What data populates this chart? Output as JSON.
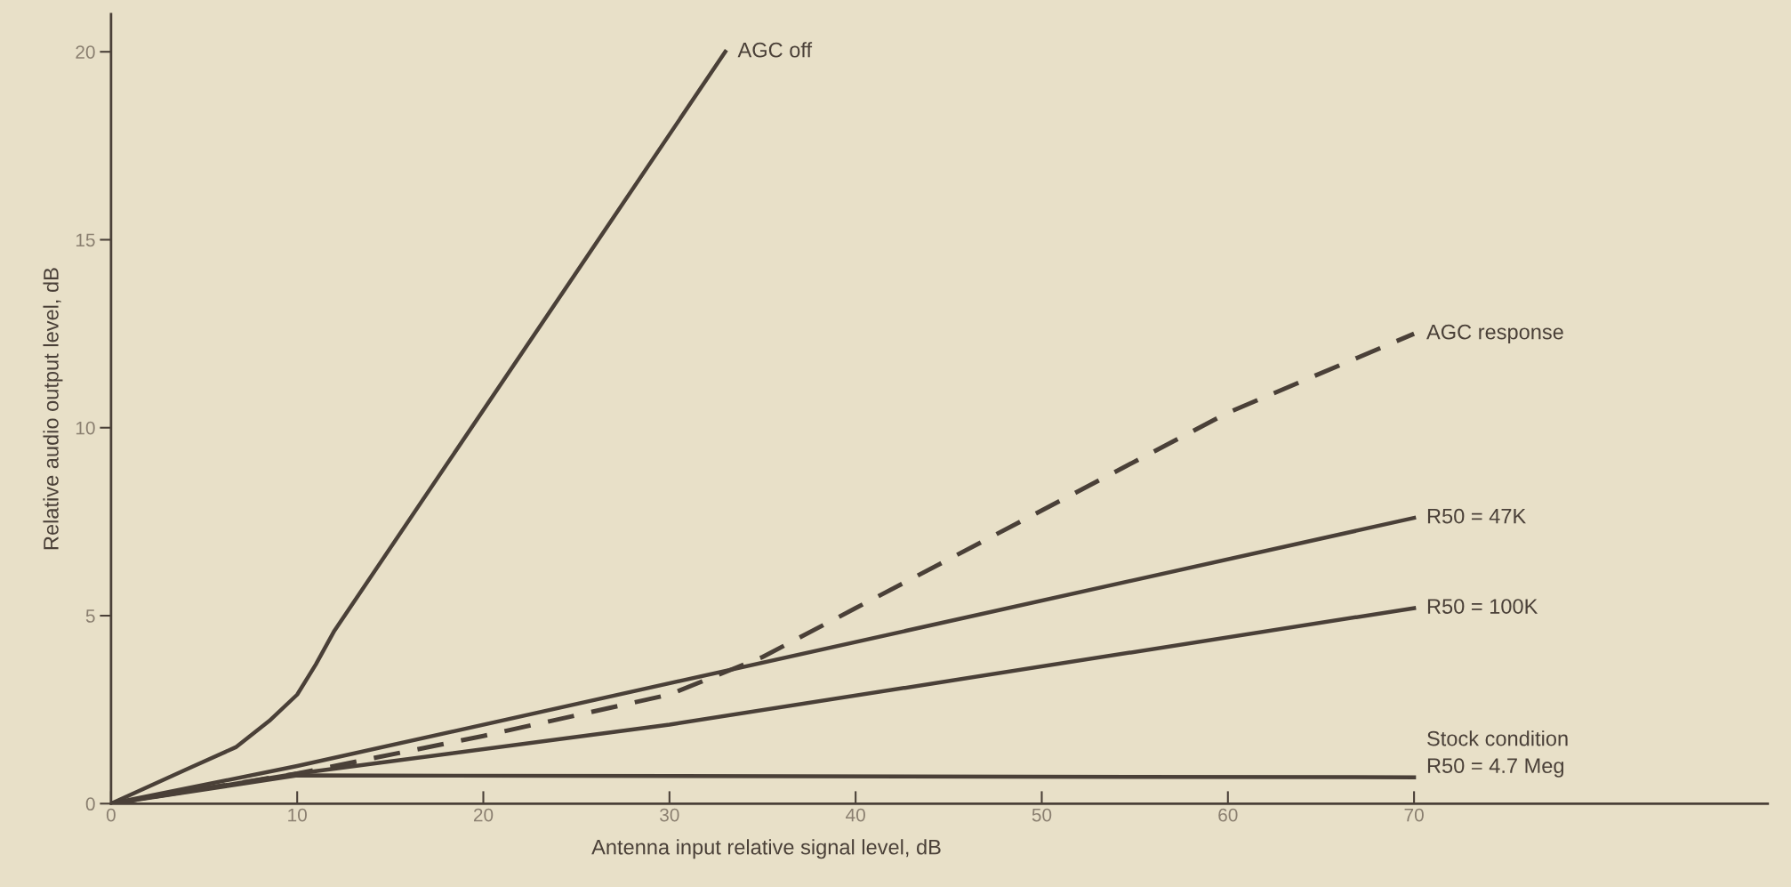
{
  "chart_data": {
    "type": "line",
    "xlabel": "Antenna input relative signal level, dB",
    "ylabel": "Relative audio output level, dB",
    "xlim": [
      0,
      89
    ],
    "ylim": [
      0,
      21
    ],
    "xticks": [
      0,
      10,
      20,
      30,
      40,
      50,
      60,
      70
    ],
    "yticks": [
      0,
      5,
      10,
      15,
      20
    ],
    "grid": false,
    "legend": false,
    "marker": "none",
    "series": [
      {
        "name": "AGC off",
        "color": "#4a4038",
        "x": [
          0,
          4,
          6.7,
          8.5,
          10,
          11,
          12,
          33
        ],
        "values": [
          0,
          0.9,
          1.5,
          2.2,
          2.9,
          3.7,
          4.6,
          20
        ]
      },
      {
        "name": "AGC response",
        "color": "#4a4038",
        "line_style": "dashed",
        "x": [
          0,
          10,
          20,
          30,
          35,
          40,
          50,
          60,
          70
        ],
        "values": [
          0,
          0.8,
          1.8,
          2.9,
          3.9,
          5.2,
          7.8,
          10.4,
          12.5
        ]
      },
      {
        "name": "R50 = 47K",
        "color": "#4a4038",
        "x": [
          0,
          10,
          70
        ],
        "values": [
          0,
          1.0,
          7.6
        ]
      },
      {
        "name": "R50 = 100K",
        "color": "#4a4038",
        "x": [
          0,
          10,
          30,
          70
        ],
        "values": [
          0,
          0.8,
          2.1,
          5.2
        ]
      },
      {
        "name": "Stock condition\nR50 = 4.7 Meg",
        "color": "#4a4038",
        "x": [
          0,
          10,
          70
        ],
        "values": [
          0,
          0.75,
          0.7
        ]
      }
    ]
  }
}
